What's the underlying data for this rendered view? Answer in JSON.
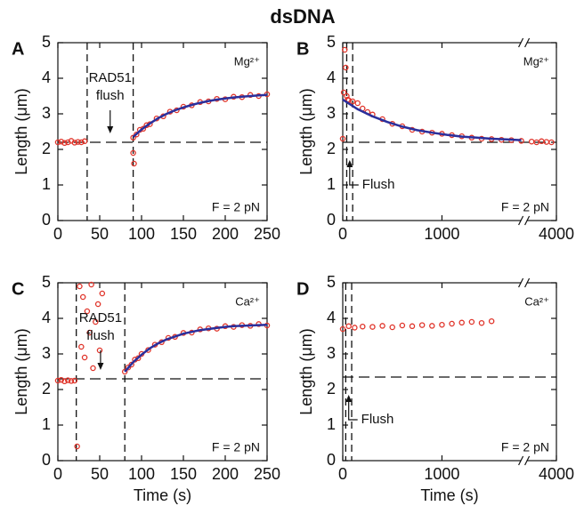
{
  "figure_title": "dsDNA",
  "chart_data": [
    {
      "type": "scatter",
      "label": "A",
      "ylabel": "Length (μm)",
      "xlim": [
        0,
        250
      ],
      "xticks": [
        0,
        50,
        100,
        150,
        200,
        250
      ],
      "ylim": [
        0,
        5
      ],
      "yticks": [
        0,
        1,
        2,
        3,
        4,
        5
      ],
      "hlines": [
        2.2
      ],
      "vlines": [
        35,
        90
      ],
      "condition": "Mg²⁺",
      "force": "F = 2 pN",
      "flush_text": [
        "RAD51",
        "flush"
      ],
      "flush_arrow": "down",
      "series": [
        {
          "style": "points",
          "color": "#e0342a",
          "x": [
            0,
            4,
            8,
            12,
            16,
            20,
            24,
            28,
            32,
            90,
            91,
            90,
            94,
            98,
            102,
            106,
            110,
            118,
            126,
            134,
            142,
            150,
            160,
            170,
            180,
            190,
            200,
            210,
            220,
            230,
            240,
            250
          ],
          "values": [
            2.2,
            2.22,
            2.18,
            2.2,
            2.24,
            2.19,
            2.21,
            2.2,
            2.23,
            1.9,
            1.6,
            2.33,
            2.42,
            2.55,
            2.58,
            2.68,
            2.71,
            2.87,
            2.93,
            3.06,
            3.1,
            3.2,
            3.24,
            3.33,
            3.35,
            3.42,
            3.41,
            3.48,
            3.47,
            3.53,
            3.5,
            3.55
          ]
        },
        {
          "style": "line",
          "color": "#2a2f9c",
          "x": [
            90,
            100,
            110,
            120,
            130,
            140,
            150,
            160,
            170,
            180,
            190,
            200,
            210,
            220,
            230,
            240,
            250
          ],
          "values": [
            2.35,
            2.56,
            2.73,
            2.88,
            3.0,
            3.1,
            3.18,
            3.25,
            3.31,
            3.36,
            3.4,
            3.43,
            3.46,
            3.48,
            3.5,
            3.52,
            3.53
          ]
        }
      ]
    },
    {
      "type": "scatter",
      "label": "B",
      "ylabel": "Length (μm)",
      "xlim": [
        0,
        4000
      ],
      "xbreak": [
        1800,
        3700
      ],
      "xticks": [
        0,
        1000,
        4000
      ],
      "ylim": [
        0,
        5
      ],
      "yticks": [
        0,
        1,
        2,
        3,
        4,
        5
      ],
      "hlines": [
        2.2
      ],
      "vlines": [
        40,
        100
      ],
      "condition": "Mg²⁺",
      "force": "F = 2 pN",
      "flush_text": [
        "Flush"
      ],
      "flush_arrow": "up",
      "series": [
        {
          "style": "points",
          "color": "#e0342a",
          "x": [
            0,
            10,
            20,
            30,
            40,
            50,
            60,
            100,
            150,
            200,
            250,
            300,
            400,
            500,
            600,
            700,
            800,
            900,
            1000,
            1100,
            1200,
            1300,
            1400,
            1500,
            1600,
            1700,
            1800,
            3750,
            3800,
            3850,
            3900,
            3950
          ],
          "values": [
            2.3,
            3.6,
            4.8,
            4.3,
            3.5,
            3.4,
            3.38,
            3.35,
            3.3,
            3.15,
            3.05,
            2.98,
            2.85,
            2.72,
            2.65,
            2.55,
            2.5,
            2.47,
            2.44,
            2.4,
            2.37,
            2.33,
            2.3,
            2.29,
            2.27,
            2.26,
            2.24,
            2.22,
            2.2,
            2.23,
            2.21,
            2.2
          ]
        },
        {
          "style": "line",
          "color": "#2a2f9c",
          "x": [
            0,
            150,
            300,
            450,
            600,
            750,
            900,
            1050,
            1200,
            1350,
            1500,
            1650,
            1800
          ],
          "values": [
            3.4,
            3.13,
            2.93,
            2.77,
            2.64,
            2.54,
            2.47,
            2.41,
            2.36,
            2.33,
            2.3,
            2.28,
            2.26
          ]
        }
      ]
    },
    {
      "type": "scatter",
      "label": "C",
      "ylabel": "Length (μm)",
      "xlabel": "Time (s)",
      "xlim": [
        0,
        250
      ],
      "xticks": [
        0,
        50,
        100,
        150,
        200,
        250
      ],
      "ylim": [
        0,
        5
      ],
      "yticks": [
        0,
        1,
        2,
        3,
        4,
        5
      ],
      "hlines": [
        2.3
      ],
      "vlines": [
        22,
        80
      ],
      "condition": "Ca²⁺",
      "force": "F = 2 pN",
      "flush_text": [
        "RAD51",
        "flush"
      ],
      "flush_arrow": "down",
      "series": [
        {
          "style": "points",
          "color": "#e0342a",
          "x": [
            0,
            4,
            8,
            12,
            16,
            20,
            23,
            26,
            28,
            30,
            32,
            35,
            38,
            40,
            42,
            45,
            48,
            50,
            53,
            80,
            84,
            88,
            92,
            96,
            100,
            108,
            116,
            124,
            132,
            140,
            150,
            160,
            170,
            180,
            190,
            200,
            210,
            220,
            230,
            240,
            250
          ],
          "values": [
            2.25,
            2.27,
            2.23,
            2.26,
            2.24,
            2.25,
            0.4,
            4.9,
            3.2,
            4.6,
            2.9,
            4.2,
            3.6,
            4.95,
            2.6,
            3.9,
            4.4,
            3.1,
            4.7,
            2.5,
            2.62,
            2.7,
            2.84,
            2.88,
            3.0,
            3.11,
            3.26,
            3.33,
            3.45,
            3.48,
            3.59,
            3.6,
            3.69,
            3.72,
            3.71,
            3.78,
            3.76,
            3.81,
            3.79,
            3.84,
            3.8
          ]
        },
        {
          "style": "line",
          "color": "#2a2f9c",
          "x": [
            80,
            90,
            100,
            110,
            120,
            130,
            140,
            150,
            160,
            170,
            180,
            190,
            200,
            210,
            220,
            230,
            240,
            250
          ],
          "values": [
            2.5,
            2.77,
            2.98,
            3.16,
            3.3,
            3.41,
            3.49,
            3.57,
            3.62,
            3.67,
            3.7,
            3.73,
            3.76,
            3.78,
            3.79,
            3.8,
            3.81,
            3.82
          ]
        }
      ]
    },
    {
      "type": "scatter",
      "label": "D",
      "ylabel": "Length (μm)",
      "xlabel": "Time (s)",
      "xlim": [
        0,
        4000
      ],
      "xbreak": [
        1800,
        3700
      ],
      "xticks": [
        0,
        1000,
        4000
      ],
      "ylim": [
        0,
        5
      ],
      "yticks": [
        0,
        1,
        2,
        3,
        4,
        5
      ],
      "hlines": [
        2.35
      ],
      "vlines": [
        30,
        90
      ],
      "condition": "Ca²⁺",
      "force": "F = 2 pN",
      "flush_text": [
        "Flush"
      ],
      "flush_arrow": "up",
      "series": [
        {
          "style": "points",
          "color": "#e0342a",
          "x": [
            0,
            60,
            120,
            200,
            300,
            400,
            500,
            600,
            700,
            800,
            900,
            1000,
            1100,
            1200,
            1300,
            1400,
            1500
          ],
          "values": [
            3.7,
            3.78,
            3.74,
            3.77,
            3.76,
            3.79,
            3.75,
            3.8,
            3.78,
            3.81,
            3.79,
            3.82,
            3.85,
            3.88,
            3.9,
            3.87,
            3.92
          ]
        }
      ]
    }
  ]
}
